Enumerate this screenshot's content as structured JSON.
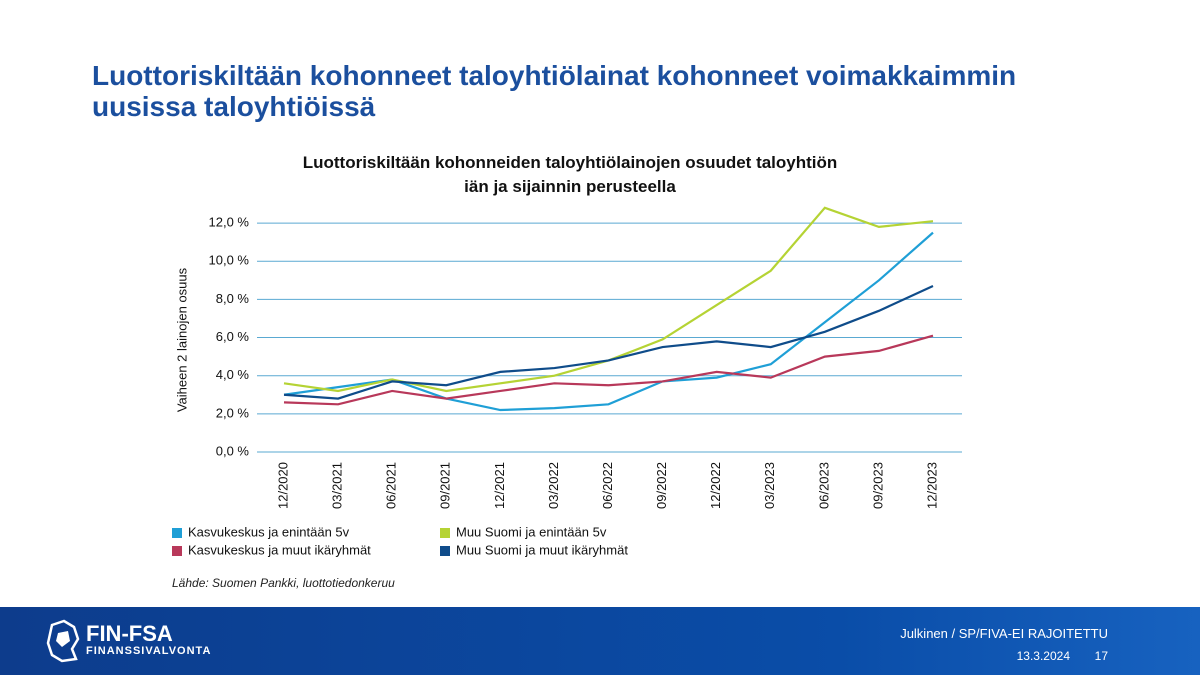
{
  "slide": {
    "title": "Luottoriskiltään kohonneet taloyhtiölainat kohonneet voimakkaimmin uusissa taloyhtiöissä",
    "source": "Lähde: Suomen Pankki, luottotiedonkeruu",
    "logo": "FIN-FSA",
    "logo_sub": "FINANSSIVALVONTA",
    "classification": "Julkinen / SP/FIVA-EI RAJOITETTU",
    "date": "13.3.2024",
    "page": "17"
  },
  "chart_data": {
    "type": "line",
    "title": "Luottoriskiltään kohonneiden taloyhtiölainojen osuudet taloyhtiön iän ja sijainnin perusteella",
    "y_label": "Vaiheen 2 lainojen osuus",
    "categories": [
      "12/2020",
      "03/2021",
      "06/2021",
      "09/2021",
      "12/2021",
      "03/2022",
      "06/2022",
      "09/2022",
      "12/2022",
      "03/2023",
      "06/2023",
      "09/2023",
      "12/2023"
    ],
    "series": [
      {
        "name": "Kasvukeskus ja enintään 5v",
        "color": "#1f9fd6",
        "values": [
          3.0,
          3.4,
          3.8,
          2.8,
          2.2,
          2.3,
          2.5,
          3.7,
          3.9,
          4.6,
          6.8,
          9.0,
          11.5
        ]
      },
      {
        "name": "Muu Suomi ja enintään 5v",
        "color": "#b5d334",
        "values": [
          3.6,
          3.2,
          3.8,
          3.2,
          3.6,
          4.0,
          4.8,
          5.9,
          7.7,
          9.5,
          12.8,
          11.8,
          12.1
        ]
      },
      {
        "name": "Kasvukeskus ja muut ikäryhmät",
        "color": "#b8385a",
        "values": [
          2.6,
          2.5,
          3.2,
          2.8,
          3.2,
          3.6,
          3.5,
          3.7,
          4.2,
          3.9,
          5.0,
          5.3,
          6.1
        ]
      },
      {
        "name": "Muu Suomi ja muut ikäryhmät",
        "color": "#0f4c8a",
        "values": [
          3.0,
          2.8,
          3.7,
          3.5,
          4.2,
          4.4,
          4.8,
          5.5,
          5.8,
          5.5,
          6.3,
          7.4,
          8.7
        ]
      }
    ],
    "ylim": [
      0,
      13
    ],
    "yticks": [
      {
        "value": 0,
        "label": "0,0 %"
      },
      {
        "value": 2,
        "label": "2,0 %"
      },
      {
        "value": 4,
        "label": "4,0 %"
      },
      {
        "value": 6,
        "label": "6,0 %"
      },
      {
        "value": 8,
        "label": "8,0 %"
      },
      {
        "value": 10,
        "label": "10,0 %"
      },
      {
        "value": 12,
        "label": "12,0 %"
      }
    ],
    "grid": true
  }
}
